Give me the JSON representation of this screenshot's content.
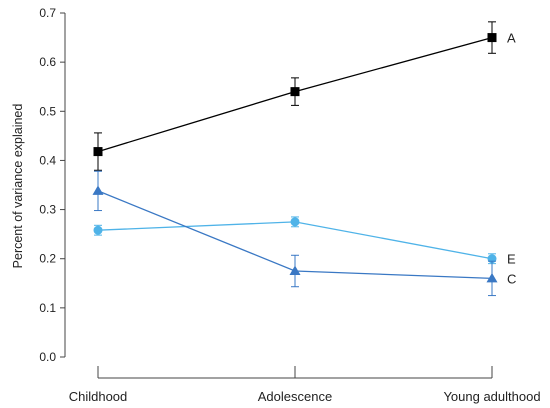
{
  "chart_data": {
    "type": "line",
    "title": "",
    "xlabel": "",
    "ylabel": "Percent of variance explained",
    "categories": [
      "Childhood",
      "Adolescence",
      "Young adulthood"
    ],
    "ylim": [
      0.0,
      0.7
    ],
    "yticks": [
      "0.0",
      "0.1",
      "0.2",
      "0.3",
      "0.4",
      "0.5",
      "0.6",
      "0.7"
    ],
    "grid": false,
    "legend": "none (series labelled at right end of lines)",
    "series": [
      {
        "name": "A",
        "marker": "square",
        "color": "#000000",
        "values": [
          0.418,
          0.54,
          0.65
        ],
        "error": [
          0.038,
          0.028,
          0.032
        ]
      },
      {
        "name": "E",
        "marker": "circle",
        "color": "#4fb3e8",
        "values": [
          0.258,
          0.275,
          0.2
        ],
        "error": [
          0.01,
          0.01,
          0.01
        ]
      },
      {
        "name": "C",
        "marker": "triangle",
        "color": "#3a78c4",
        "values": [
          0.338,
          0.175,
          0.16
        ],
        "error": [
          0.04,
          0.032,
          0.035
        ]
      }
    ]
  }
}
